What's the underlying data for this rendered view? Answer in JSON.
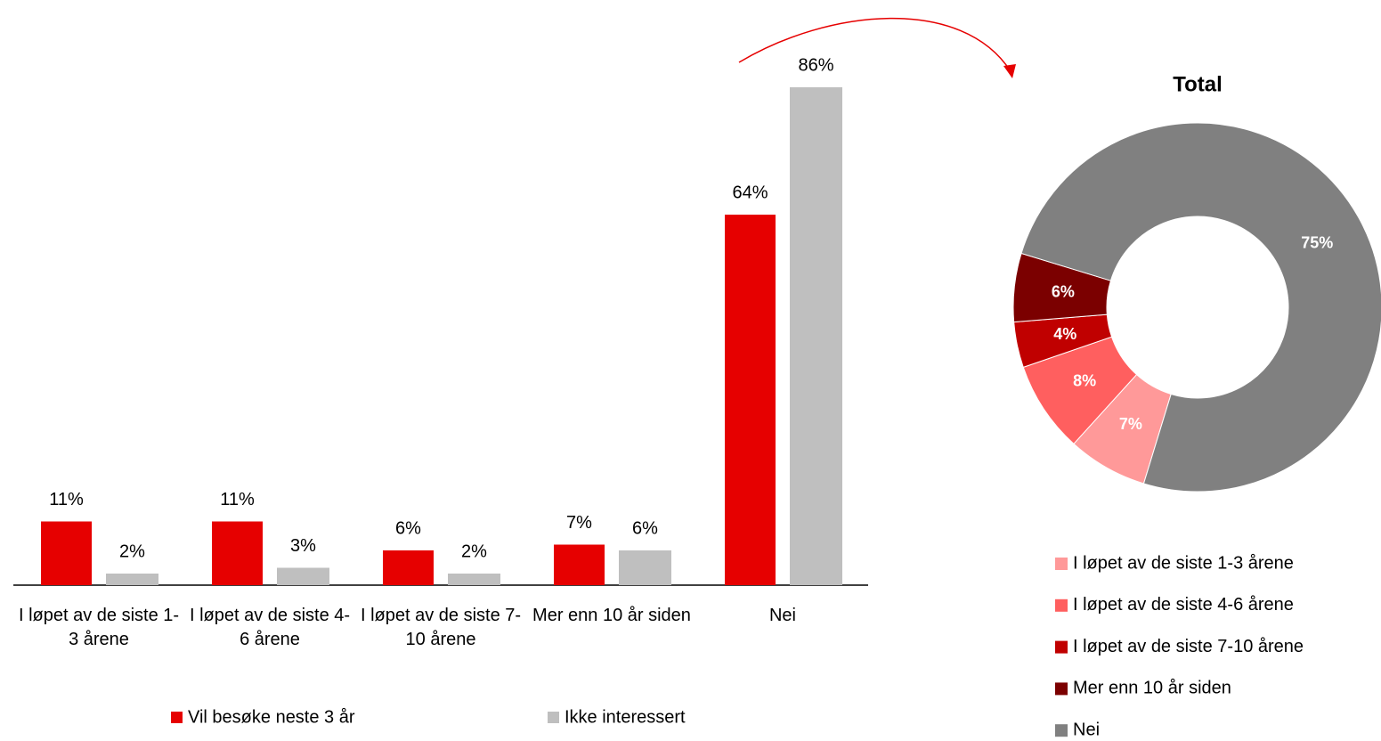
{
  "chart_data": [
    {
      "type": "bar",
      "categories": [
        "I løpet av de siste 1-3 årene",
        "I løpet av de siste 4-6 årene",
        "I løpet av de siste 7-10 årene",
        "Mer enn 10 år siden",
        "Nei"
      ],
      "series": [
        {
          "name": "Vil besøke neste 3 år",
          "color": "#e60000",
          "values": [
            11,
            11,
            6,
            7,
            64
          ],
          "value_labels": [
            "11%",
            "11%",
            "6%",
            "7%",
            "64%"
          ]
        },
        {
          "name": "Ikke interessert",
          "color": "#bfbfbf",
          "values": [
            2,
            3,
            2,
            6,
            86
          ],
          "value_labels": [
            "2%",
            "3%",
            "2%",
            "6%",
            "86%"
          ]
        }
      ]
    },
    {
      "type": "pie",
      "title": "Total",
      "categories": [
        "I løpet av de siste 1-3 årene",
        "I løpet av de siste 4-6 årene",
        "I løpet av de siste 7-10 årene",
        "Mer enn 10 år siden",
        "Nei"
      ],
      "values": [
        7,
        8,
        4,
        6,
        75
      ],
      "value_labels": [
        "7%",
        "8%",
        "4%",
        "6%",
        "75%"
      ],
      "colors": [
        "#ff9999",
        "#ff5f5f",
        "#c00000",
        "#7b0000",
        "#808080"
      ]
    }
  ]
}
